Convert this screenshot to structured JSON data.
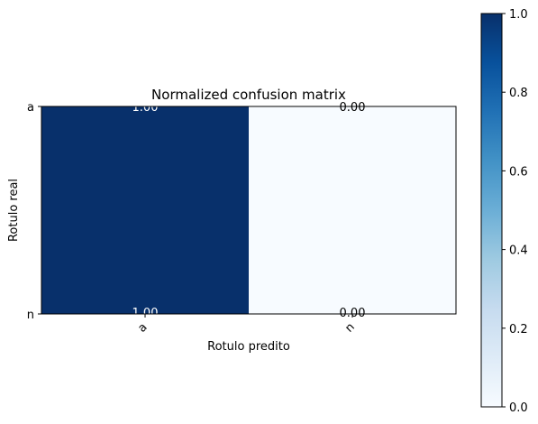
{
  "chart_data": {
    "type": "heatmap",
    "title": "Normalized confusion matrix",
    "xlabel": "Rotulo predito",
    "ylabel": "Rotulo real",
    "x_categories": [
      "a",
      "n"
    ],
    "y_categories": [
      "a",
      "n"
    ],
    "values": [
      [
        1.0,
        0.0
      ],
      [
        1.0,
        0.0
      ]
    ],
    "cell_labels": [
      [
        "1.00",
        "0.00"
      ],
      [
        "1.00",
        "0.00"
      ]
    ],
    "colormap": "Blues",
    "color_low": "#f7fbff",
    "color_high": "#08306b",
    "colorbar": {
      "range": [
        0,
        1
      ],
      "ticks": [
        "0.0",
        "0.2",
        "0.4",
        "0.6",
        "0.8",
        "1.0"
      ]
    }
  }
}
